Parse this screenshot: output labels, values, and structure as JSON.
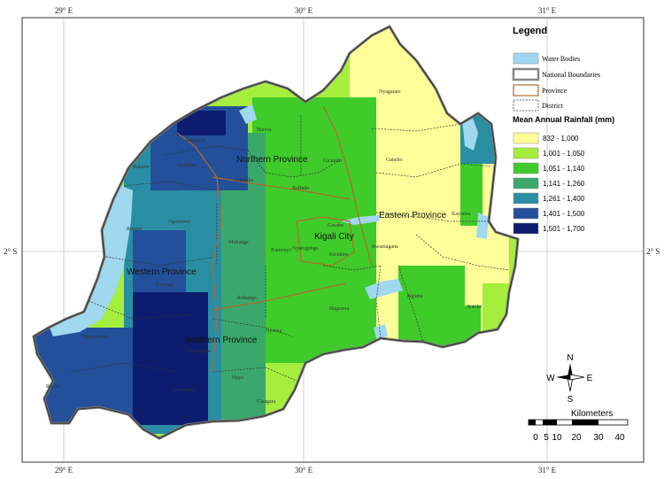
{
  "map": {
    "ticks": {
      "top": [
        "29° E",
        "30° E",
        "31° E"
      ],
      "bottom": [
        "29° E",
        "30° E",
        "31° E"
      ],
      "left": [
        "2° S"
      ],
      "right": [
        "2° S"
      ]
    },
    "colors": {
      "water": "#9fd8ef",
      "boundary": "#777777",
      "province": "#b06a2c",
      "district": "#333333"
    },
    "provinces": [
      "Northern Province",
      "Eastern Province",
      "Western Province",
      "Southern Province",
      "Kigali City"
    ],
    "districts": [
      "Nyagatare",
      "Gatsibo",
      "Kayonza",
      "Kirehe",
      "Ngoma",
      "Bugesera",
      "Rwamagana",
      "Gasabo",
      "Kicukiro",
      "Nyarugenge",
      "Kamonyi",
      "Gicumbi",
      "Rulindo",
      "Gakenke",
      "Musanze",
      "Burera",
      "Nyabihu",
      "Rubavu",
      "Ngororero",
      "Rutsiro",
      "Karongi",
      "Muhanga",
      "Ruhango",
      "Nyanza",
      "Huye",
      "Gisagara",
      "Nyamagabe",
      "Nyamasheke",
      "Rusizi",
      "Nyaruguru"
    ]
  },
  "legend": {
    "title": "Legend",
    "items": [
      {
        "label": "Water Bodies",
        "icon": "water-swatch"
      },
      {
        "label": "National Boundaries",
        "icon": "boundary-swatch"
      },
      {
        "label": "Province",
        "icon": "province-swatch"
      },
      {
        "label": "District",
        "icon": "district-swatch"
      }
    ],
    "rainfall_title": "Mean Annual Rainfall (mm)",
    "classes": [
      {
        "label": "832 - 1,000",
        "color": "#ffff9a"
      },
      {
        "label": "1,001 - 1,050",
        "color": "#a6ee3e"
      },
      {
        "label": "1,051 - 1,140",
        "color": "#3fcb2a"
      },
      {
        "label": "1,141 - 1,260",
        "color": "#3aa86b"
      },
      {
        "label": "1,261 - 1,400",
        "color": "#2a8ea3"
      },
      {
        "label": "1,401 - 1,500",
        "color": "#244f9a"
      },
      {
        "label": "1,501 - 1,700",
        "color": "#0d1c6e"
      }
    ]
  },
  "compass": {
    "n": "N",
    "s": "S",
    "e": "E",
    "w": "W"
  },
  "scale": {
    "unit": "Kilometers",
    "labels": [
      "0",
      "5",
      "10",
      "20",
      "30",
      "40"
    ]
  }
}
